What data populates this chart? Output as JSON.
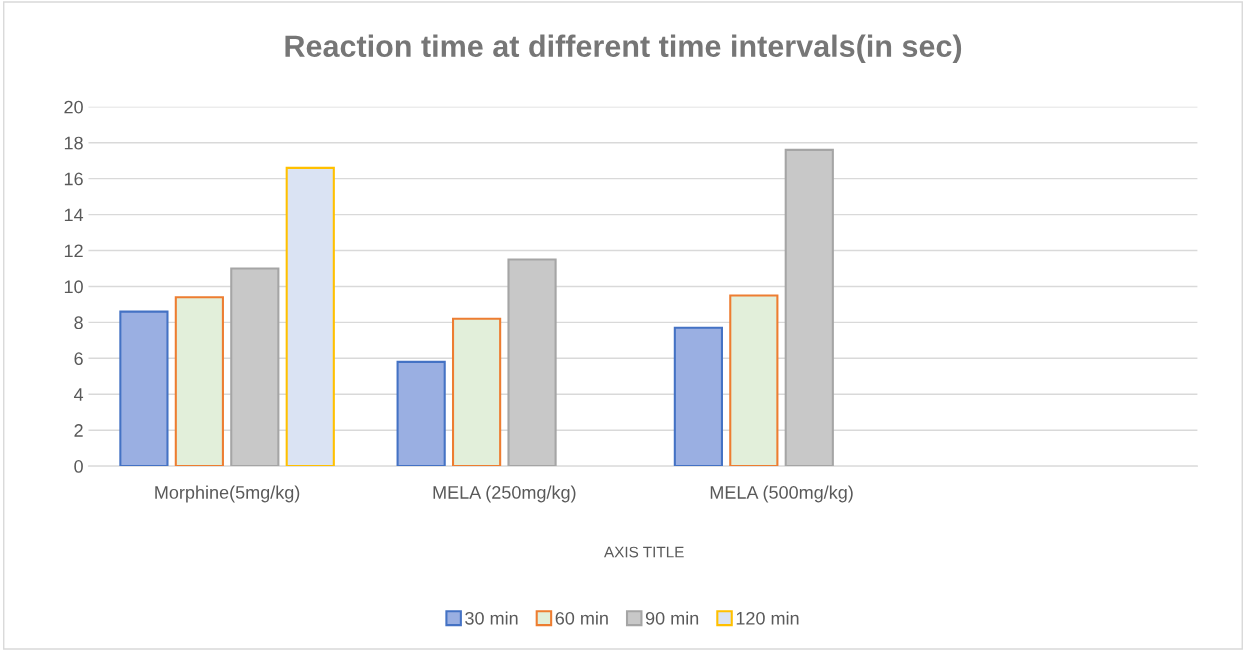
{
  "chart_data": {
    "type": "bar",
    "title": "Reaction time at different time intervals(in sec)",
    "xlabel": "AXIS TITLE",
    "categories": [
      "Morphine(5mg/kg)",
      "MELA (250mg/kg)",
      "MELA (500mg/kg)",
      null
    ],
    "series": [
      {
        "name": "30 min",
        "color": "#9aafe2",
        "values": [
          8.6,
          5.8,
          7.7,
          null
        ]
      },
      {
        "name": "60 min",
        "color": "#e2efda",
        "values": [
          9.4,
          8.2,
          9.5,
          null
        ]
      },
      {
        "name": "90 min",
        "color": "#c8c8c8",
        "values": [
          11.0,
          11.5,
          17.6,
          null
        ]
      },
      {
        "name": "120 min",
        "color": "#dae3f3",
        "values": [
          16.6,
          null,
          null,
          null
        ]
      }
    ],
    "ylim": [
      0,
      20
    ],
    "yticks": [
      0,
      2,
      4,
      6,
      8,
      10,
      12,
      14,
      16,
      18,
      20
    ],
    "grid": "y",
    "legend": "bottom"
  }
}
